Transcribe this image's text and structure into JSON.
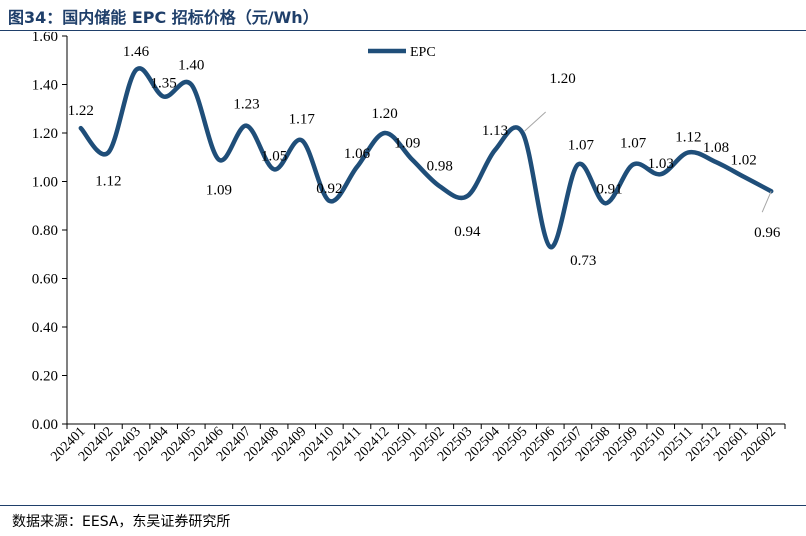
{
  "figure": {
    "title": "图34：国内储能 EPC 招标价格（元/Wh）",
    "source": "数据来源：EESA，东吴证券研究所"
  },
  "colors": {
    "line": "#1f4e79",
    "axis": "#000000",
    "callout": "#a6a6a6"
  },
  "chart_data": {
    "type": "line",
    "title": "",
    "xlabel": "",
    "ylabel": "",
    "categories": [
      "202401",
      "202402",
      "202403",
      "202404",
      "202405",
      "202406",
      "202407",
      "202408",
      "202409",
      "202410",
      "202411",
      "202412",
      "202501",
      "202502",
      "202503",
      "202504",
      "202505",
      "202506",
      "202507",
      "202508",
      "202509",
      "202510",
      "202511",
      "202512",
      "202601",
      "202602"
    ],
    "series": [
      {
        "name": "EPC",
        "values": [
          1.22,
          1.12,
          1.46,
          1.35,
          1.4,
          1.09,
          1.23,
          1.05,
          1.17,
          0.92,
          1.06,
          1.2,
          1.09,
          0.98,
          0.94,
          1.13,
          1.2,
          0.73,
          1.07,
          0.91,
          1.07,
          1.03,
          1.12,
          1.08,
          1.02,
          0.96
        ]
      }
    ],
    "data_labels": [
      "1.22",
      "1.12",
      "1.46",
      "1.35",
      "1.40",
      "1.09",
      "1.23",
      "1.05",
      "1.17",
      "0.92",
      "1.06",
      "1.20",
      "1.09",
      "0.98",
      "0.94",
      "1.13",
      "1.20",
      "0.73",
      "1.07",
      "0.91",
      "1.07",
      "1.03",
      "1.12",
      "1.08",
      "1.02",
      "0.96"
    ],
    "y_ticks": [
      "0.00",
      "0.20",
      "0.40",
      "0.60",
      "0.80",
      "1.00",
      "1.20",
      "1.40",
      "1.60"
    ],
    "ylim": [
      0,
      1.6
    ],
    "grid": false,
    "legend": "top-center",
    "smooth": true
  }
}
